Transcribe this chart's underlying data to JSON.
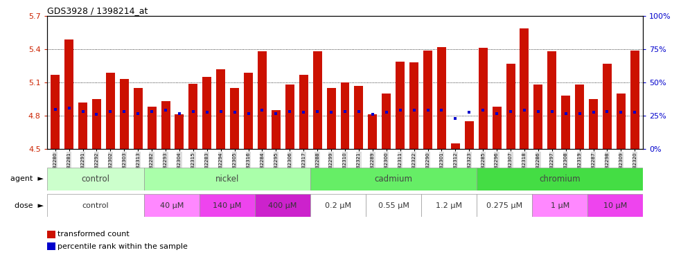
{
  "title": "GDS3928 / 1398214_at",
  "samples": [
    "GSM782280",
    "GSM782281",
    "GSM782291",
    "GSM782292",
    "GSM782302",
    "GSM782303",
    "GSM782313",
    "GSM782282",
    "GSM782293",
    "GSM782304",
    "GSM782315",
    "GSM782283",
    "GSM782294",
    "GSM782305",
    "GSM782316",
    "GSM782284",
    "GSM782295",
    "GSM782306",
    "GSM782317",
    "GSM782288",
    "GSM782299",
    "GSM782310",
    "GSM782321",
    "GSM782289",
    "GSM782300",
    "GSM782311",
    "GSM782322",
    "GSM782290",
    "GSM782301",
    "GSM782312",
    "GSM782323",
    "GSM782285",
    "GSM782296",
    "GSM782307",
    "GSM782318",
    "GSM782286",
    "GSM782297",
    "GSM782308",
    "GSM782319",
    "GSM782287",
    "GSM782298",
    "GSM782309",
    "GSM782320"
  ],
  "bar_values": [
    5.17,
    5.49,
    4.92,
    4.95,
    5.19,
    5.13,
    5.05,
    4.88,
    4.93,
    4.81,
    5.09,
    5.15,
    5.22,
    5.05,
    5.19,
    5.38,
    4.85,
    5.08,
    5.17,
    5.38,
    5.05,
    5.1,
    5.07,
    4.81,
    5.0,
    5.29,
    5.28,
    5.39,
    5.42,
    4.55,
    4.75,
    5.41,
    4.88,
    5.27,
    5.59,
    5.08,
    5.38,
    4.98,
    5.08,
    4.95,
    5.27,
    5.0,
    5.39
  ],
  "percentile_values": [
    4.855,
    4.87,
    4.835,
    4.815,
    4.84,
    4.835,
    4.82,
    4.84,
    4.85,
    4.82,
    4.84,
    4.83,
    4.84,
    4.83,
    4.82,
    4.85,
    4.82,
    4.84,
    4.83,
    4.84,
    4.83,
    4.84,
    4.84,
    4.81,
    4.83,
    4.85,
    4.85,
    4.85,
    4.85,
    4.775,
    4.83,
    4.85,
    4.82,
    4.84,
    4.85,
    4.84,
    4.84,
    4.82,
    4.82,
    4.83,
    4.84,
    4.83,
    4.83
  ],
  "ylim_left": [
    4.5,
    5.7
  ],
  "ylim_right": [
    0,
    100
  ],
  "yticks_left": [
    4.5,
    4.8,
    5.1,
    5.4,
    5.7
  ],
  "yticks_right": [
    0,
    25,
    50,
    75,
    100
  ],
  "bar_color": "#cc1100",
  "dot_color": "#0000cc",
  "agent_spans": [
    {
      "start": 0,
      "end": 7,
      "label": "control",
      "color": "#ccffcc"
    },
    {
      "start": 7,
      "end": 19,
      "label": "nickel",
      "color": "#aaffaa"
    },
    {
      "start": 19,
      "end": 31,
      "label": "cadmium",
      "color": "#66ee66"
    },
    {
      "start": 31,
      "end": 43,
      "label": "chromium",
      "color": "#44dd44"
    }
  ],
  "dose_spans": [
    {
      "start": 0,
      "end": 7,
      "label": "control",
      "color": "#ffffff"
    },
    {
      "start": 7,
      "end": 11,
      "label": "40 μM",
      "color": "#ff88ff"
    },
    {
      "start": 11,
      "end": 15,
      "label": "140 μM",
      "color": "#ee44ee"
    },
    {
      "start": 15,
      "end": 19,
      "label": "400 μM",
      "color": "#cc22cc"
    },
    {
      "start": 19,
      "end": 23,
      "label": "0.2 μM",
      "color": "#ffffff"
    },
    {
      "start": 23,
      "end": 27,
      "label": "0.55 μM",
      "color": "#ffffff"
    },
    {
      "start": 27,
      "end": 31,
      "label": "1.2 μM",
      "color": "#ffffff"
    },
    {
      "start": 31,
      "end": 35,
      "label": "0.275 μM",
      "color": "#ffffff"
    },
    {
      "start": 35,
      "end": 39,
      "label": "1 μM",
      "color": "#ff88ff"
    },
    {
      "start": 39,
      "end": 43,
      "label": "10 μM",
      "color": "#ee44ee"
    }
  ]
}
